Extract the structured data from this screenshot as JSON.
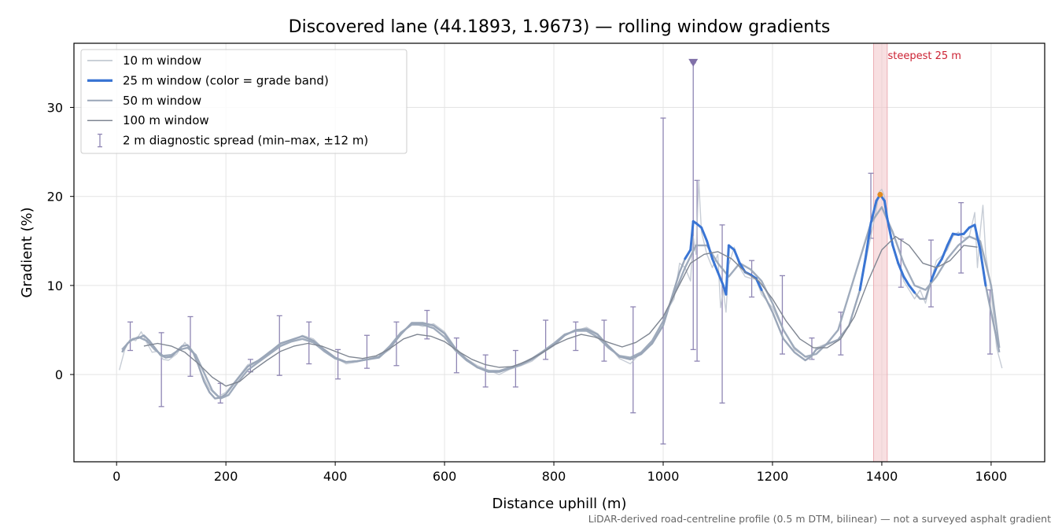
{
  "chart_data": {
    "type": "line",
    "title": "Discovered lane (44.1893, 1.9673) — rolling window gradients",
    "xlabel": "Distance uphill (m)",
    "ylabel": "Gradient (%)",
    "xlim": [
      -78,
      1698
    ],
    "ylim": [
      -9.8,
      37.2
    ],
    "xticks": [
      0,
      200,
      400,
      600,
      800,
      1000,
      1200,
      1400,
      1600
    ],
    "yticks": [
      0,
      10,
      20,
      30
    ],
    "grid": true,
    "legend_position": "top-left",
    "footnote": "LiDAR-derived road-centreline profile (0.5 m DTM, bilinear) — not a surveyed asphalt gradient",
    "colors": {
      "w10": "#b9c1cc",
      "w25": "#3a75d4",
      "w50": "#9aa6b8",
      "w100": "#7f8692",
      "errorbar": "#8f86b4",
      "highlight": "#f2c4c8",
      "annotation": "#cc2233",
      "steepest_point": "#e08a1e",
      "marker": "#8070a8"
    },
    "series": [
      {
        "name": "10 m window",
        "key": "w10",
        "x": [
          5,
          15,
          25,
          35,
          45,
          55,
          65,
          75,
          85,
          95,
          110,
          125,
          140,
          155,
          170,
          185,
          200,
          220,
          240,
          260,
          280,
          300,
          320,
          340,
          360,
          380,
          400,
          420,
          440,
          460,
          480,
          500,
          520,
          540,
          560,
          580,
          600,
          620,
          640,
          660,
          680,
          700,
          720,
          740,
          760,
          780,
          800,
          820,
          840,
          860,
          880,
          900,
          920,
          940,
          960,
          980,
          1000,
          1010,
          1020,
          1030,
          1040,
          1050,
          1055,
          1060,
          1065,
          1070,
          1080,
          1090,
          1100,
          1105,
          1110,
          1115,
          1120,
          1130,
          1140,
          1150,
          1160,
          1170,
          1180,
          1200,
          1220,
          1240,
          1260,
          1270,
          1280,
          1300,
          1320,
          1340,
          1360,
          1370,
          1380,
          1390,
          1395,
          1400,
          1405,
          1410,
          1420,
          1430,
          1440,
          1450,
          1460,
          1470,
          1480,
          1490,
          1500,
          1510,
          1520,
          1530,
          1540,
          1550,
          1560,
          1570,
          1575,
          1580,
          1585,
          1590,
          1600,
          1610,
          1620
        ],
        "y": [
          0.5,
          2.8,
          4.0,
          3.8,
          4.8,
          3.6,
          2.5,
          2.6,
          1.7,
          1.6,
          2.3,
          3.6,
          2.4,
          0.2,
          -1.6,
          -2.5,
          -2.0,
          -0.5,
          1.1,
          1.6,
          2.6,
          3.3,
          3.8,
          4.4,
          4.0,
          2.8,
          1.9,
          1.2,
          1.4,
          1.7,
          2.0,
          2.8,
          4.6,
          5.8,
          5.4,
          5.7,
          4.8,
          3.0,
          1.8,
          1.0,
          0.5,
          0.0,
          0.6,
          1.0,
          1.5,
          2.5,
          3.4,
          4.4,
          4.9,
          5.3,
          4.6,
          3.2,
          1.8,
          1.2,
          2.5,
          3.4,
          5.5,
          7.5,
          8.5,
          12.5,
          12.0,
          10.5,
          15.5,
          13.5,
          21.8,
          16.0,
          13.5,
          12.0,
          13.5,
          7.5,
          9.5,
          7.0,
          12.3,
          14.3,
          12.0,
          11.0,
          10.8,
          10.7,
          9.0,
          7.5,
          5.0,
          2.8,
          2.0,
          1.7,
          3.0,
          3.5,
          3.8,
          5.5,
          9.5,
          12.5,
          15.5,
          18.5,
          20.5,
          20.8,
          20.0,
          17.5,
          14.5,
          12.5,
          10.5,
          9.5,
          8.5,
          9.5,
          8.0,
          10.5,
          12.8,
          13.3,
          14.0,
          15.5,
          16.0,
          15.3,
          15.5,
          18.2,
          12.0,
          16.0,
          19.0,
          13.5,
          9.5,
          3.0,
          0.7
        ]
      },
      {
        "name": "25 m window (color = grade band)",
        "key": "w25",
        "x": [
          10,
          20,
          30,
          40,
          50,
          60,
          70,
          80,
          90,
          100,
          110,
          120,
          130,
          140,
          150,
          160,
          170,
          180,
          190,
          200,
          220,
          240,
          260,
          280,
          300,
          320,
          340,
          360,
          380,
          400,
          420,
          440,
          460,
          480,
          500,
          520,
          540,
          560,
          580,
          600,
          620,
          640,
          660,
          680,
          700,
          720,
          740,
          760,
          780,
          800,
          820,
          840,
          860,
          880,
          900,
          920,
          940,
          960,
          980,
          1000,
          1010,
          1020,
          1030,
          1040,
          1050,
          1055,
          1060,
          1070,
          1080,
          1090,
          1100,
          1110,
          1115,
          1120,
          1130,
          1140,
          1150,
          1160,
          1170,
          1180,
          1200,
          1220,
          1240,
          1260,
          1270,
          1280,
          1300,
          1320,
          1340,
          1360,
          1370,
          1380,
          1390,
          1397,
          1405,
          1410,
          1420,
          1430,
          1440,
          1450,
          1460,
          1470,
          1480,
          1490,
          1500,
          1510,
          1520,
          1530,
          1540,
          1550,
          1560,
          1570,
          1580,
          1590,
          1600,
          1610,
          1615
        ],
        "y": [
          2.5,
          3.5,
          4.0,
          4.1,
          4.4,
          3.8,
          3.0,
          2.2,
          1.9,
          2.0,
          2.6,
          3.2,
          3.3,
          2.5,
          1.0,
          -0.8,
          -2.0,
          -2.7,
          -2.6,
          -2.2,
          -0.6,
          0.9,
          1.6,
          2.5,
          3.5,
          3.9,
          4.3,
          3.8,
          2.8,
          1.9,
          1.4,
          1.5,
          1.7,
          1.9,
          3.0,
          4.5,
          5.8,
          5.8,
          5.5,
          4.6,
          2.9,
          1.7,
          0.8,
          0.3,
          0.3,
          0.7,
          1.1,
          1.7,
          2.5,
          3.3,
          4.4,
          5.0,
          5.1,
          4.5,
          3.2,
          2.0,
          1.7,
          2.3,
          3.5,
          5.5,
          7.5,
          9.5,
          11.5,
          13.0,
          14.0,
          17.2,
          17.0,
          16.5,
          15.0,
          13.0,
          11.5,
          10.0,
          9.0,
          14.5,
          14.0,
          12.5,
          11.5,
          11.2,
          10.8,
          9.5,
          7.0,
          4.0,
          2.5,
          1.6,
          2.0,
          2.8,
          3.4,
          3.9,
          5.5,
          9.5,
          13.0,
          17.0,
          19.5,
          20.2,
          19.5,
          17.5,
          14.5,
          12.5,
          11.0,
          10.0,
          9.2,
          8.5,
          8.5,
          10.5,
          12.0,
          13.0,
          14.5,
          15.8,
          15.7,
          15.8,
          16.5,
          16.8,
          14.0,
          10.0,
          7.0,
          4.0,
          2.5
        ]
      },
      {
        "name": "50 m window",
        "key": "w50",
        "x": [
          10,
          25,
          40,
          55,
          70,
          85,
          100,
          115,
          130,
          145,
          160,
          175,
          190,
          205,
          220,
          240,
          260,
          280,
          300,
          320,
          340,
          360,
          380,
          400,
          420,
          440,
          460,
          480,
          500,
          520,
          540,
          560,
          580,
          600,
          620,
          640,
          660,
          680,
          700,
          720,
          740,
          760,
          780,
          800,
          820,
          840,
          860,
          880,
          900,
          920,
          940,
          960,
          980,
          1000,
          1020,
          1040,
          1060,
          1080,
          1100,
          1120,
          1140,
          1160,
          1180,
          1200,
          1220,
          1240,
          1260,
          1280,
          1300,
          1320,
          1340,
          1360,
          1380,
          1400,
          1420,
          1440,
          1460,
          1480,
          1500,
          1520,
          1540,
          1560,
          1580,
          1600,
          1615
        ],
        "y": [
          2.8,
          3.8,
          4.2,
          3.8,
          2.8,
          2.1,
          2.2,
          2.8,
          3.0,
          2.2,
          0.2,
          -1.8,
          -2.7,
          -2.3,
          -1.0,
          0.5,
          1.4,
          2.3,
          3.2,
          3.7,
          4.0,
          3.6,
          2.6,
          1.8,
          1.4,
          1.5,
          1.7,
          2.0,
          3.2,
          4.7,
          5.6,
          5.6,
          5.2,
          4.2,
          2.7,
          1.6,
          0.8,
          0.4,
          0.4,
          0.8,
          1.2,
          1.8,
          2.6,
          3.5,
          4.5,
          4.9,
          4.9,
          4.2,
          3.0,
          2.1,
          1.9,
          2.5,
          3.8,
          6.0,
          9.0,
          12.0,
          14.5,
          14.5,
          12.5,
          11.0,
          12.5,
          11.8,
          10.5,
          8.0,
          5.0,
          3.0,
          2.0,
          2.3,
          3.5,
          5.0,
          9.0,
          13.0,
          17.0,
          18.8,
          16.0,
          12.5,
          10.0,
          9.5,
          11.0,
          13.0,
          14.5,
          15.5,
          15.0,
          10.0,
          3.0
        ]
      },
      {
        "name": "100 m window",
        "key": "w100",
        "x": [
          50,
          75,
          100,
          125,
          150,
          175,
          200,
          225,
          250,
          275,
          300,
          325,
          350,
          375,
          400,
          425,
          450,
          475,
          500,
          525,
          550,
          575,
          600,
          625,
          650,
          675,
          700,
          725,
          750,
          775,
          800,
          825,
          850,
          875,
          900,
          925,
          950,
          975,
          1000,
          1025,
          1050,
          1075,
          1100,
          1125,
          1150,
          1175,
          1200,
          1225,
          1250,
          1275,
          1300,
          1325,
          1350,
          1375,
          1400,
          1425,
          1450,
          1475,
          1500,
          1525,
          1550,
          1575
        ],
        "y": [
          3.2,
          3.5,
          3.2,
          2.5,
          1.2,
          -0.3,
          -1.3,
          -0.8,
          0.5,
          1.6,
          2.6,
          3.2,
          3.5,
          3.2,
          2.6,
          2.0,
          1.8,
          2.1,
          2.9,
          4.0,
          4.5,
          4.3,
          3.7,
          2.6,
          1.7,
          1.1,
          0.8,
          0.9,
          1.5,
          2.3,
          3.3,
          4.0,
          4.5,
          4.2,
          3.6,
          3.1,
          3.6,
          4.6,
          6.5,
          9.5,
          12.5,
          13.5,
          13.8,
          13.0,
          11.5,
          10.5,
          8.5,
          6.0,
          4.0,
          3.0,
          3.0,
          4.0,
          6.5,
          10.5,
          14.0,
          15.5,
          14.5,
          12.5,
          12.0,
          12.8,
          14.5,
          14.3
        ]
      }
    ],
    "errorbars": [
      {
        "x": 25,
        "min": 2.7,
        "max": 5.9
      },
      {
        "x": 82,
        "min": -3.6,
        "max": 4.7
      },
      {
        "x": 135,
        "min": -0.2,
        "max": 6.5
      },
      {
        "x": 190,
        "min": -3.2,
        "max": -1.0
      },
      {
        "x": 245,
        "min": 0.3,
        "max": 1.7
      },
      {
        "x": 298,
        "min": -0.1,
        "max": 6.6
      },
      {
        "x": 352,
        "min": 1.2,
        "max": 5.9
      },
      {
        "x": 405,
        "min": -0.5,
        "max": 2.8
      },
      {
        "x": 458,
        "min": 0.7,
        "max": 4.4
      },
      {
        "x": 512,
        "min": 1.0,
        "max": 5.9
      },
      {
        "x": 568,
        "min": 4.0,
        "max": 7.2
      },
      {
        "x": 622,
        "min": 0.2,
        "max": 4.1
      },
      {
        "x": 675,
        "min": -1.4,
        "max": 2.2
      },
      {
        "x": 730,
        "min": -1.4,
        "max": 2.7
      },
      {
        "x": 785,
        "min": 1.7,
        "max": 6.1
      },
      {
        "x": 840,
        "min": 2.7,
        "max": 5.9
      },
      {
        "x": 892,
        "min": 1.5,
        "max": 6.1
      },
      {
        "x": 945,
        "min": -4.3,
        "max": 7.6
      },
      {
        "x": 1000,
        "min": -7.8,
        "max": 28.8
      },
      {
        "x": 1055,
        "min": 2.8,
        "max": 35.0
      },
      {
        "x": 1062,
        "min": 1.5,
        "max": 21.8
      },
      {
        "x": 1108,
        "min": -3.2,
        "max": 16.8
      },
      {
        "x": 1162,
        "min": 8.7,
        "max": 12.8
      },
      {
        "x": 1218,
        "min": 2.3,
        "max": 11.1
      },
      {
        "x": 1272,
        "min": 1.7,
        "max": 4.1
      },
      {
        "x": 1325,
        "min": 2.2,
        "max": 7.0
      },
      {
        "x": 1380,
        "min": 15.3,
        "max": 22.6
      },
      {
        "x": 1435,
        "min": 9.8,
        "max": 15.2
      },
      {
        "x": 1490,
        "min": 7.6,
        "max": 15.1
      },
      {
        "x": 1545,
        "min": 11.4,
        "max": 19.3
      },
      {
        "x": 1598,
        "min": 2.3,
        "max": 9.5
      }
    ],
    "highlight": {
      "x_start": 1385,
      "x_end": 1410,
      "label": "steepest 25 m"
    },
    "steepest_point": {
      "x": 1397,
      "y": 20.2
    },
    "marker_top": {
      "x": 1055,
      "y": 35.0
    },
    "legend": [
      {
        "label": "10 m window",
        "key": "w10",
        "style": "line-thin"
      },
      {
        "label": "25 m window (color = grade band)",
        "key": "w25",
        "style": "line-thick"
      },
      {
        "label": "50 m window",
        "key": "w50",
        "style": "line-mid"
      },
      {
        "label": "100 m window",
        "key": "w100",
        "style": "line-thin"
      },
      {
        "label": "2 m diagnostic spread (min–max, ±12 m)",
        "key": "errorbar",
        "style": "errorbar"
      }
    ]
  }
}
